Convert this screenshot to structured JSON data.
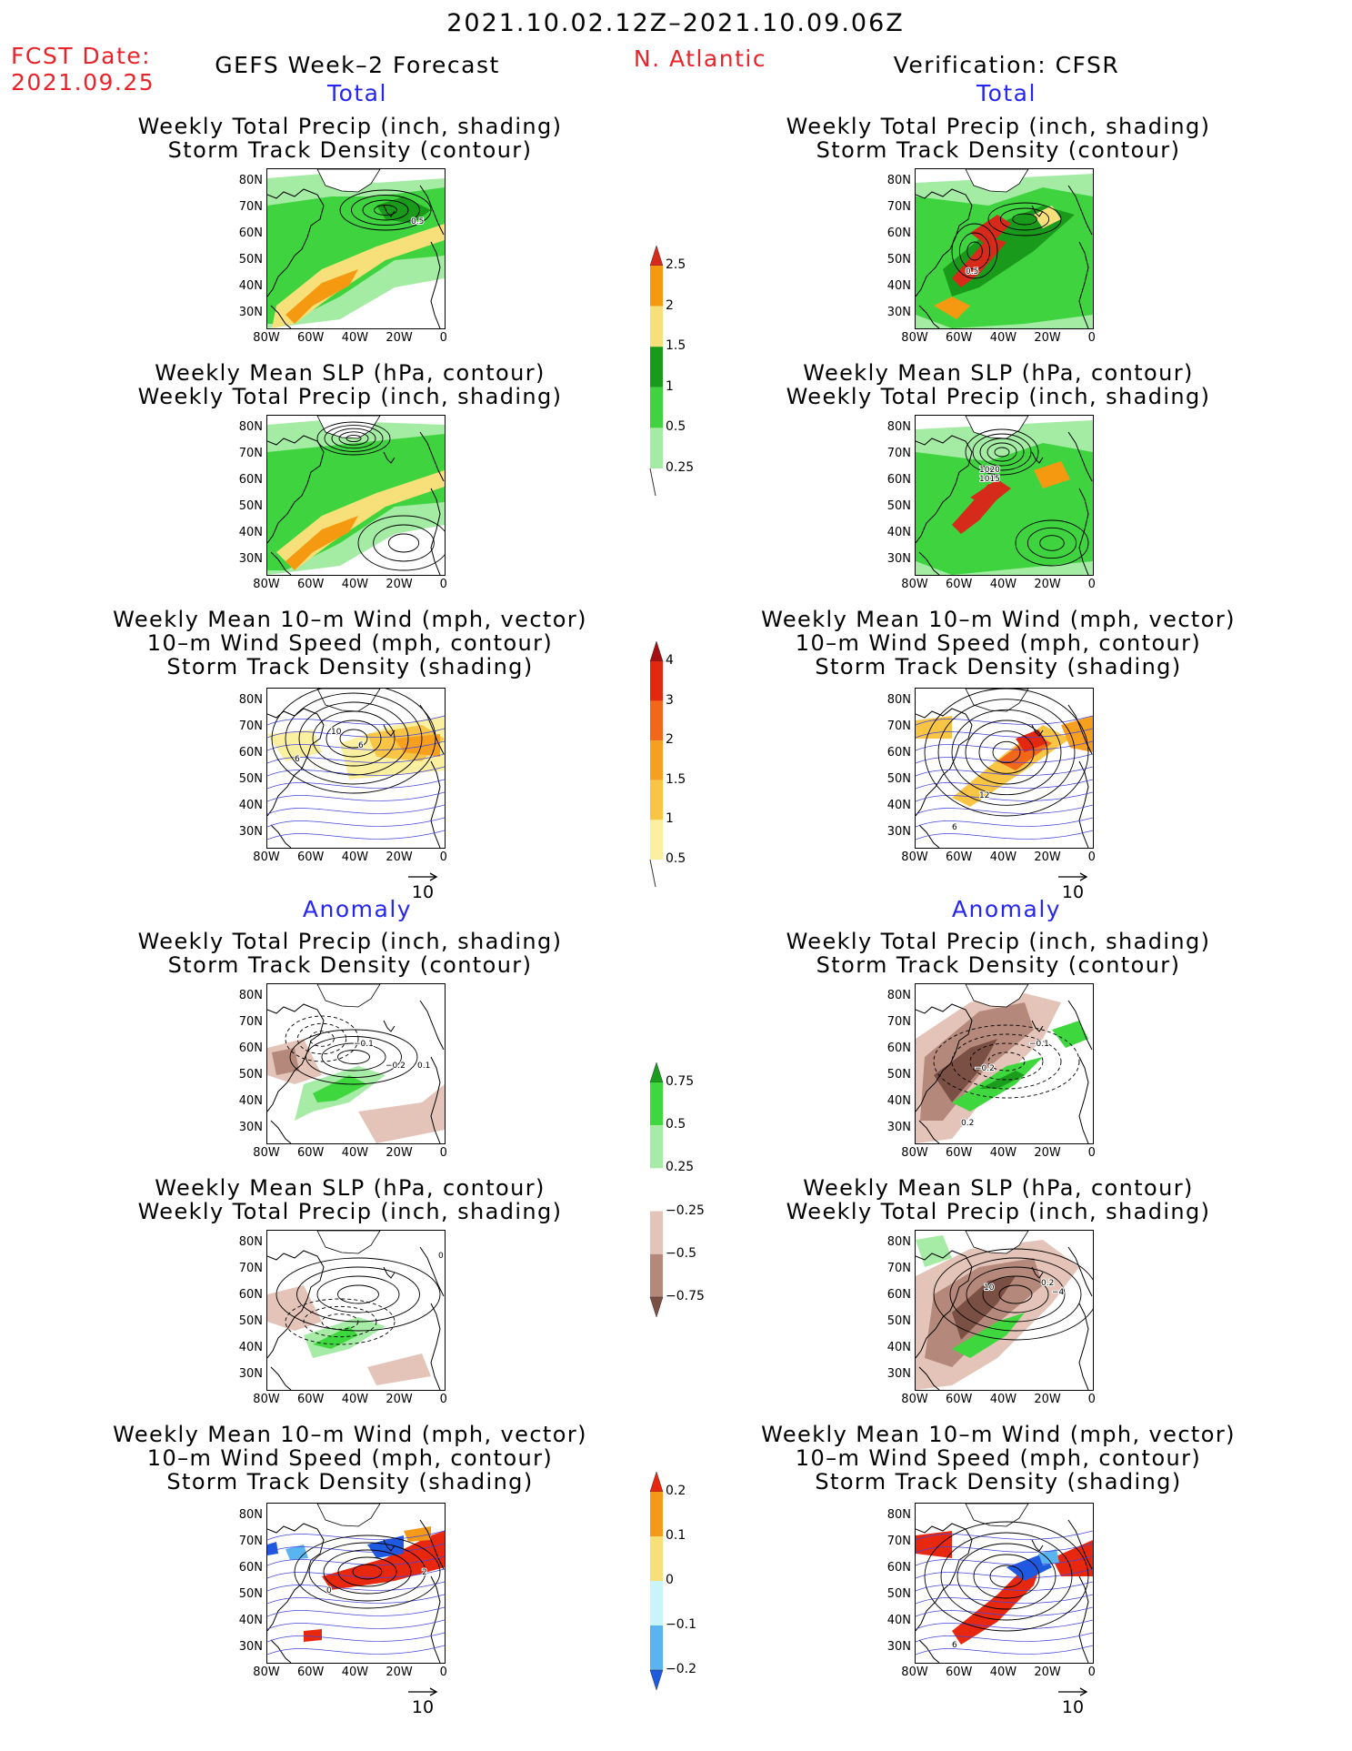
{
  "header": {
    "valid_period": "2021.10.02.12Z–2021.10.09.06Z",
    "fcst_date_label": "FCST Date:",
    "fcst_date": "2021.09.25",
    "left_title": "GEFS Week–2 Forecast",
    "region": "N. Atlantic",
    "right_title": "Verification: CFSR"
  },
  "sections": {
    "total": "Total",
    "anomaly": "Anomaly"
  },
  "panel_titles": {
    "precip_track": [
      "Weekly Total Precip (inch, shading)",
      "Storm Track Density (contour)"
    ],
    "slp_precip": [
      "Weekly Mean SLP (hPa, contour)",
      "Weekly Total Precip (inch, shading)"
    ],
    "wind_track": [
      "Weekly Mean 10–m Wind (mph, vector)",
      "10–m Wind Speed (mph, contour)",
      "Storm Track Density (shading)"
    ]
  },
  "axes": {
    "lat": [
      "80N",
      "70N",
      "60N",
      "50N",
      "40N",
      "30N"
    ],
    "lon": [
      "80W",
      "60W",
      "40W",
      "20W",
      "0"
    ]
  },
  "vector_reference": "10",
  "colorbars": {
    "precip_total": {
      "labels": [
        "2.5",
        "2",
        "1.5",
        "1",
        "0.5",
        "0.25"
      ],
      "colors": [
        "#d62a1a",
        "#f59a10",
        "#f7e07a",
        "#1a9a1a",
        "#3fd43f",
        "#a4eca4"
      ]
    },
    "track_total": {
      "labels": [
        "4",
        "3",
        "2",
        "1.5",
        "1",
        "0.5"
      ],
      "colors": [
        "#a50f0f",
        "#e2280f",
        "#f3671a",
        "#f7a020",
        "#f8c545",
        "#fbf0a0"
      ]
    },
    "precip_anom": {
      "labels": [
        "0.75",
        "0.5",
        "0.25",
        "−0.25",
        "−0.5",
        "−0.75"
      ],
      "colors": [
        "#1c9c1c",
        "#3ed83e",
        "#a6eca6",
        "#ffffff",
        "#e4c4b8",
        "#b4887a",
        "#7a5044"
      ]
    },
    "track_anom": {
      "labels": [
        "0.2",
        "0.1",
        "0",
        "−0.1",
        "−0.2"
      ],
      "colors": [
        "#e8280e",
        "#f59a18",
        "#f7e07a",
        "#c8f4fa",
        "#5ab4f0",
        "#1e5ae0"
      ]
    }
  },
  "contour_labels": {
    "p1_left": [
      "0.5"
    ],
    "p1_right": [
      "0.5"
    ],
    "p2_right": [
      "1020",
      "1015"
    ],
    "p3_left": [
      "10",
      "6",
      "6"
    ],
    "p3_right": [
      "12",
      "6"
    ],
    "p4_left": [
      "−0.1",
      "−0.2",
      "0.1"
    ],
    "p4_right": [
      "−0.1",
      "−0.2",
      "0.2"
    ],
    "p5_left": [
      "0"
    ],
    "p5_right": [
      "10",
      "0.2",
      "−4"
    ],
    "p6_left": [
      "0",
      "2"
    ],
    "p6_right": [
      "6"
    ]
  }
}
